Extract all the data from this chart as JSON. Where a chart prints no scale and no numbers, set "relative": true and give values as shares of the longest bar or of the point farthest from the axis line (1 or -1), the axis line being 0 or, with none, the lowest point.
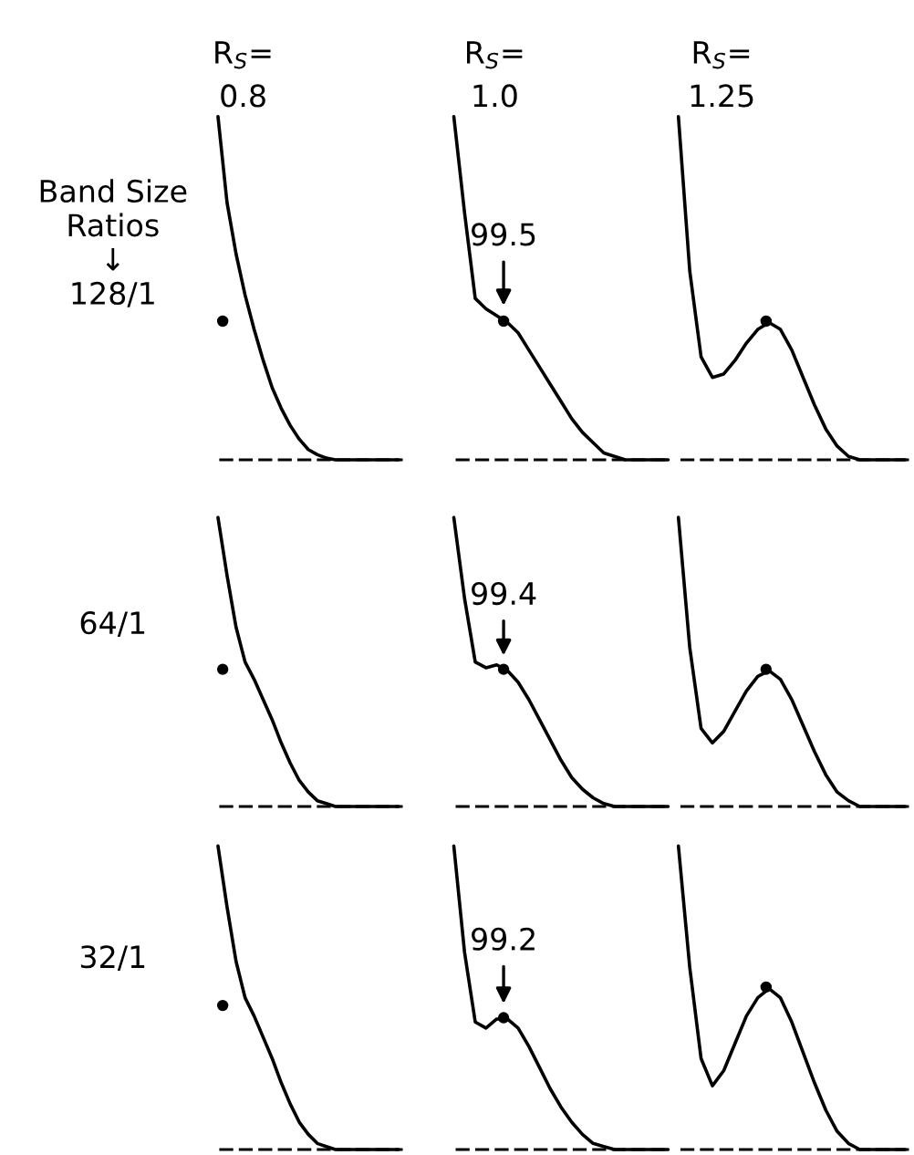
{
  "chart_data": [
    {
      "type": "line",
      "relative": true,
      "title": "R$_{S}$=\n0.8",
      "ylabel": "Band Size\nRatios\n↓\n128/1",
      "categories": [
        null,
        null,
        null,
        null,
        null,
        null,
        null,
        null,
        null,
        null,
        null,
        null,
        null,
        null,
        null,
        null,
        null,
        null,
        null,
        null,
        null
      ],
      "series": [
        {
          "color": "#000000",
          "values": [
            1.0,
            0.75,
            0.6,
            0.48,
            0.38,
            0.29,
            0.21,
            0.15,
            0.1,
            0.06,
            0.03,
            0.015,
            0.005,
            0,
            0,
            0,
            0,
            0,
            0,
            0,
            0
          ]
        }
      ]
    },
    {
      "type": "line",
      "relative": true,
      "title": "R$_{S}$=\n1.0",
      "categories": [
        null,
        null,
        null,
        null,
        null,
        null,
        null,
        null,
        null,
        null,
        null,
        null,
        null,
        null,
        null,
        null,
        null,
        null,
        null,
        null,
        null
      ],
      "annotations": [
        "99.5"
      ],
      "series": [
        {
          "color": "#000000",
          "values": [
            1.0,
            0.72,
            0.47,
            0.44,
            0.42,
            0.4,
            0.37,
            0.32,
            0.27,
            0.22,
            0.17,
            0.12,
            0.08,
            0.05,
            0.02,
            0.01,
            0,
            0,
            0,
            0,
            0
          ]
        }
      ]
    },
    {
      "type": "line",
      "relative": true,
      "title": "R$_{S}$=\n1.25",
      "categories": [
        null,
        null,
        null,
        null,
        null,
        null,
        null,
        null,
        null,
        null,
        null,
        null,
        null,
        null,
        null,
        null,
        null,
        null,
        null,
        null,
        null
      ],
      "series": [
        {
          "color": "#000000",
          "values": [
            1.0,
            0.55,
            0.3,
            0.24,
            0.25,
            0.29,
            0.34,
            0.38,
            0.4,
            0.38,
            0.32,
            0.24,
            0.16,
            0.09,
            0.04,
            0.01,
            0,
            0,
            0,
            0,
            0
          ]
        }
      ]
    },
    {
      "type": "line",
      "relative": true,
      "ylabel": "64/1",
      "categories": [
        null,
        null,
        null,
        null,
        null,
        null,
        null,
        null,
        null,
        null,
        null,
        null,
        null,
        null,
        null,
        null,
        null,
        null,
        null,
        null,
        null
      ],
      "series": [
        {
          "color": "#000000",
          "values": [
            1.0,
            0.8,
            0.62,
            0.5,
            0.44,
            0.37,
            0.3,
            0.22,
            0.15,
            0.09,
            0.05,
            0.02,
            0.01,
            0,
            0,
            0,
            0,
            0,
            0,
            0,
            0
          ]
        }
      ]
    },
    {
      "type": "line",
      "relative": true,
      "categories": [
        null,
        null,
        null,
        null,
        null,
        null,
        null,
        null,
        null,
        null,
        null,
        null,
        null,
        null,
        null,
        null,
        null,
        null,
        null,
        null,
        null
      ],
      "annotations": [
        "99.4"
      ],
      "series": [
        {
          "color": "#000000",
          "values": [
            1.0,
            0.72,
            0.5,
            0.48,
            0.49,
            0.47,
            0.43,
            0.37,
            0.3,
            0.23,
            0.16,
            0.1,
            0.06,
            0.03,
            0.01,
            0,
            0,
            0,
            0,
            0,
            0
          ]
        }
      ]
    },
    {
      "type": "line",
      "relative": true,
      "categories": [
        null,
        null,
        null,
        null,
        null,
        null,
        null,
        null,
        null,
        null,
        null,
        null,
        null,
        null,
        null,
        null,
        null,
        null,
        null,
        null,
        null
      ],
      "series": [
        {
          "color": "#000000",
          "values": [
            1.0,
            0.55,
            0.27,
            0.22,
            0.26,
            0.33,
            0.4,
            0.45,
            0.47,
            0.44,
            0.37,
            0.28,
            0.19,
            0.11,
            0.05,
            0.02,
            0,
            0,
            0,
            0,
            0
          ]
        }
      ]
    },
    {
      "type": "line",
      "relative": true,
      "ylabel": "32/1",
      "categories": [
        null,
        null,
        null,
        null,
        null,
        null,
        null,
        null,
        null,
        null,
        null,
        null,
        null,
        null,
        null,
        null,
        null,
        null,
        null,
        null,
        null
      ],
      "series": [
        {
          "color": "#000000",
          "values": [
            1.0,
            0.8,
            0.62,
            0.5,
            0.44,
            0.37,
            0.3,
            0.22,
            0.15,
            0.09,
            0.05,
            0.02,
            0.01,
            0,
            0,
            0,
            0,
            0,
            0,
            0,
            0
          ]
        }
      ]
    },
    {
      "type": "line",
      "relative": true,
      "categories": [
        null,
        null,
        null,
        null,
        null,
        null,
        null,
        null,
        null,
        null,
        null,
        null,
        null,
        null,
        null,
        null,
        null,
        null,
        null,
        null,
        null
      ],
      "annotations": [
        "99.2"
      ],
      "series": [
        {
          "color": "#000000",
          "values": [
            1.0,
            0.65,
            0.42,
            0.4,
            0.43,
            0.43,
            0.4,
            0.34,
            0.27,
            0.2,
            0.14,
            0.09,
            0.05,
            0.02,
            0.01,
            0,
            0,
            0,
            0,
            0,
            0
          ]
        }
      ]
    },
    {
      "type": "line",
      "relative": true,
      "categories": [
        null,
        null,
        null,
        null,
        null,
        null,
        null,
        null,
        null,
        null,
        null,
        null,
        null,
        null,
        null,
        null,
        null,
        null,
        null,
        null,
        null
      ],
      "series": [
        {
          "color": "#000000",
          "values": [
            1.0,
            0.6,
            0.3,
            0.21,
            0.26,
            0.35,
            0.44,
            0.5,
            0.53,
            0.5,
            0.42,
            0.32,
            0.22,
            0.13,
            0.06,
            0.02,
            0,
            0,
            0,
            0,
            0
          ]
        }
      ]
    }
  ]
}
